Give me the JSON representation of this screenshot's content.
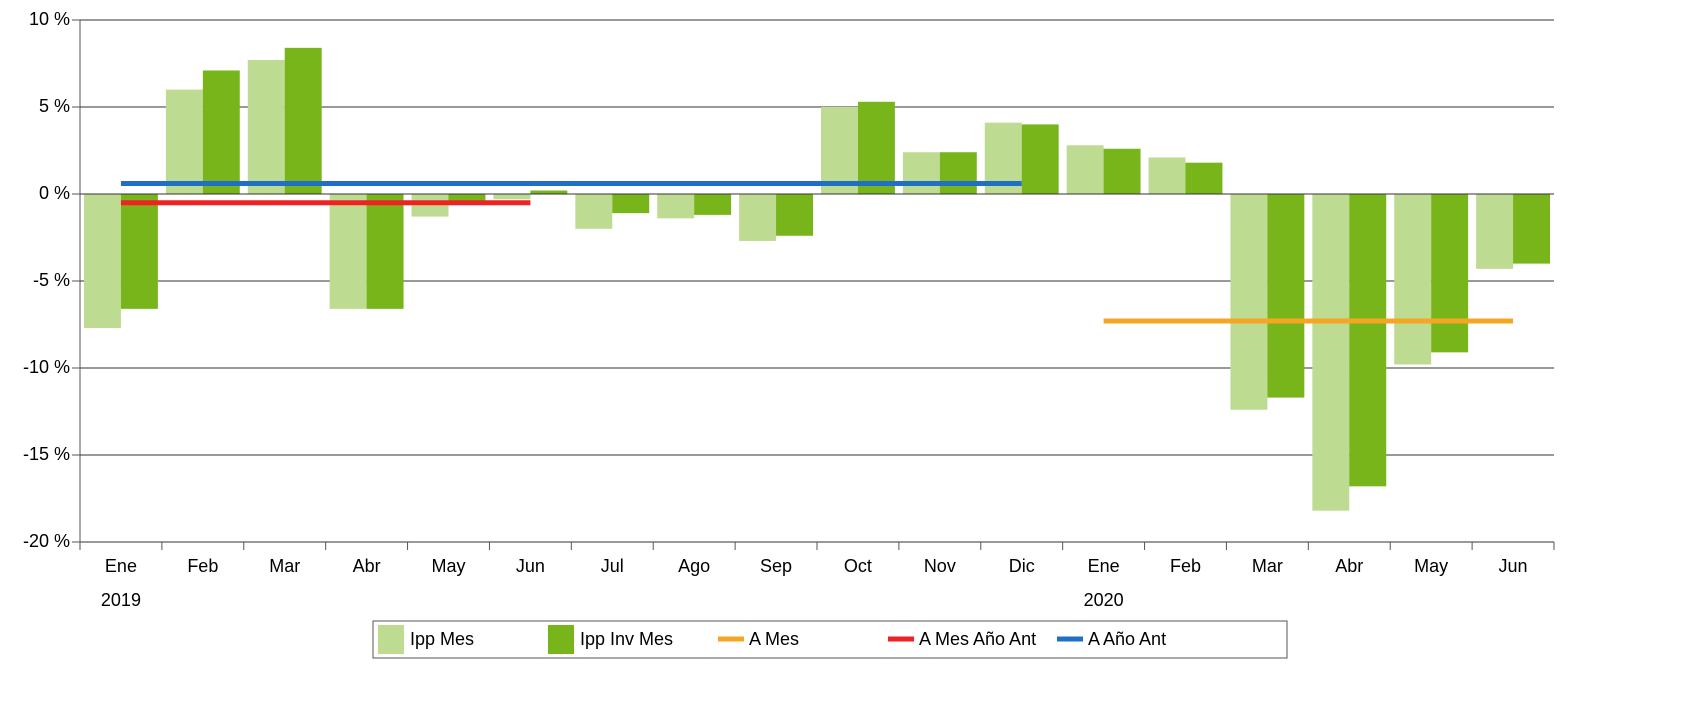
{
  "chart_data": {
    "type": "bar",
    "categories": [
      "Ene",
      "Feb",
      "Mar",
      "Abr",
      "May",
      "Jun",
      "Jul",
      "Ago",
      "Sep",
      "Oct",
      "Nov",
      "Dic",
      "Ene",
      "Feb",
      "Mar",
      "Abr",
      "May",
      "Jun"
    ],
    "year_labels": [
      "2019",
      null,
      null,
      null,
      null,
      null,
      null,
      null,
      null,
      null,
      null,
      null,
      "2020",
      null,
      null,
      null,
      null,
      null
    ],
    "series": [
      {
        "name": "Ipp Mes",
        "type": "bar",
        "color": "#bddc92",
        "values": [
          -7.7,
          6.0,
          7.7,
          -6.6,
          -1.3,
          -0.3,
          -2.0,
          -1.4,
          -2.7,
          5.0,
          2.4,
          4.1,
          2.8,
          2.1,
          -12.4,
          -18.2,
          -9.8,
          -4.3
        ]
      },
      {
        "name": "Ipp Inv Mes",
        "type": "bar",
        "color": "#77b51b",
        "values": [
          -6.6,
          7.1,
          8.4,
          -6.6,
          -0.4,
          0.2,
          -1.1,
          -1.2,
          -2.4,
          5.3,
          2.4,
          4.0,
          2.6,
          1.8,
          -11.7,
          -16.8,
          -9.1,
          -4.0
        ]
      },
      {
        "name": "A Mes",
        "type": "line",
        "color": "#f5a623",
        "values": [
          null,
          null,
          null,
          null,
          null,
          null,
          null,
          null,
          null,
          null,
          null,
          null,
          -7.3,
          -7.3,
          -7.3,
          -7.3,
          -7.3,
          -7.3
        ]
      },
      {
        "name": "A Mes Año Ant",
        "type": "line",
        "color": "#ee2222",
        "values": [
          -0.5,
          -0.5,
          -0.5,
          -0.5,
          -0.5,
          -0.5,
          null,
          null,
          null,
          null,
          null,
          null,
          null,
          null,
          null,
          null,
          null,
          null
        ]
      },
      {
        "name": "A Año Ant",
        "type": "line",
        "color": "#1f6fc5",
        "values": [
          0.6,
          0.6,
          0.6,
          0.6,
          0.6,
          0.6,
          0.6,
          0.6,
          0.6,
          0.6,
          0.6,
          0.6,
          null,
          null,
          null,
          null,
          null,
          null
        ]
      }
    ],
    "ylim": [
      -20,
      10
    ],
    "yticks": [
      {
        "value": -20,
        "label": "-20 %"
      },
      {
        "value": -15,
        "label": "-15 %"
      },
      {
        "value": -10,
        "label": "-10 %"
      },
      {
        "value": -5,
        "label": "-5 %"
      },
      {
        "value": 0,
        "label": "0 %"
      },
      {
        "value": 5,
        "label": "5 %"
      },
      {
        "value": 10,
        "label": "10 %"
      }
    ],
    "grid": true,
    "legend": "bottom"
  }
}
